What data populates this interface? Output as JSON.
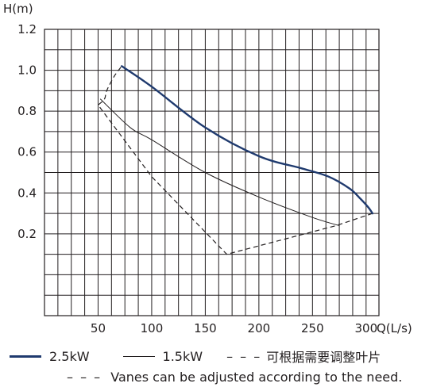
{
  "chart_data": {
    "type": "line",
    "ylabel": "H(m)",
    "xlabel": "Q(L/s)",
    "xlim": [
      0,
      312
    ],
    "ylim": [
      -0.2,
      1.2
    ],
    "x_ticks": [
      50,
      100,
      150,
      200,
      250,
      300
    ],
    "y_ticks": [
      0.2,
      0.4,
      0.6,
      0.8,
      1.0,
      1.2
    ],
    "x_tick_labels": [
      "50",
      "100",
      "150",
      "200",
      "250",
      "300"
    ],
    "y_tick_labels": [
      "0.2",
      "0.4",
      "0.6",
      "0.8",
      "1.0",
      "1.2"
    ],
    "grid": true,
    "series": [
      {
        "name": "2.5kW",
        "color": "#1f3a6e",
        "x": [
          72,
          100,
          150,
          200,
          240,
          265,
          285,
          295,
          302,
          306
        ],
        "y": [
          1.02,
          0.92,
          0.72,
          0.58,
          0.52,
          0.48,
          0.42,
          0.37,
          0.33,
          0.3
        ]
      },
      {
        "name": "1.5kW",
        "color": "#231f20",
        "x": [
          52,
          80,
          100,
          150,
          200,
          250,
          275
        ],
        "y": [
          0.86,
          0.72,
          0.66,
          0.5,
          0.38,
          0.28,
          0.24
        ]
      }
    ],
    "adjustment_boundary": {
      "color": "#231f20",
      "x": [
        306,
        272,
        170,
        100,
        50,
        56,
        58,
        65,
        72
      ],
      "y": [
        0.3,
        0.24,
        0.1,
        0.48,
        0.83,
        0.86,
        0.9,
        0.97,
        1.02
      ]
    }
  },
  "legend": {
    "item1": "2.5kW",
    "item2": "1.5kW",
    "item3": "可根据需要调整叶片",
    "dash_prefix": "– – –",
    "note": "Vanes can be adjusted according to the need."
  }
}
